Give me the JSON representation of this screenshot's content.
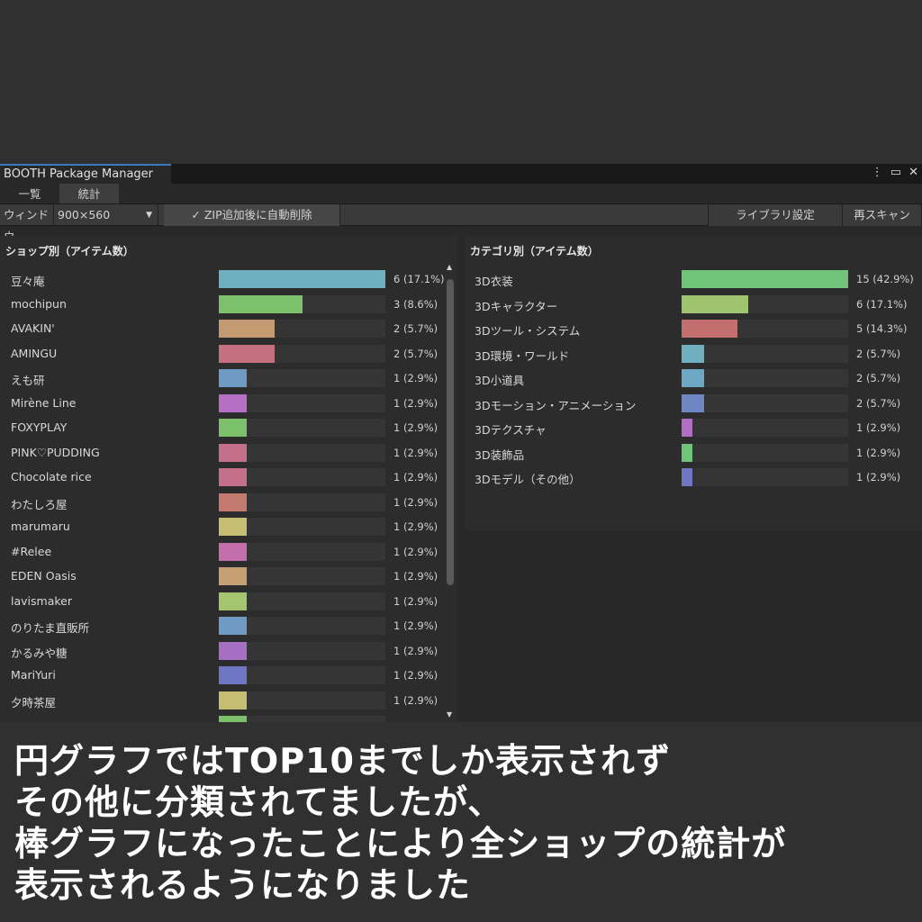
{
  "window": {
    "title": "BOOTH Package Manager",
    "menu_icon": "kebab-icon",
    "max_icon": "maximize-icon",
    "close_icon": "close-icon"
  },
  "tabs": [
    {
      "label": "一覧"
    },
    {
      "label": "統計"
    }
  ],
  "toolbar": {
    "window_label": "ウィンドウ",
    "window_size": "900×560",
    "auto_delete": "✓ ZIP追加後に自動削除",
    "library_settings": "ライブラリ設定",
    "rescan": "再スキャン"
  },
  "shops": {
    "title": "ショップ別（アイテム数）",
    "max": 6,
    "items": [
      {
        "name": "豆々庵",
        "count": 6,
        "label": "6 (17.1%)",
        "color": "#6fb0c0"
      },
      {
        "name": "mochipun",
        "count": 3,
        "label": "3 (8.6%)",
        "color": "#7dc06c"
      },
      {
        "name": "AVAKIN'",
        "count": 2,
        "label": "2 (5.7%)",
        "color": "#c49a72"
      },
      {
        "name": "AMINGU",
        "count": 2,
        "label": "2 (5.7%)",
        "color": "#c4707f"
      },
      {
        "name": "えも研",
        "count": 1,
        "label": "1 (2.9%)",
        "color": "#6f9ac4"
      },
      {
        "name": "Mirène Line",
        "count": 1,
        "label": "1 (2.9%)",
        "color": "#b56fc4"
      },
      {
        "name": "FOXYPLAY",
        "count": 1,
        "label": "1 (2.9%)",
        "color": "#7dc06c"
      },
      {
        "name": "PINK♡PUDDING",
        "count": 1,
        "label": "1 (2.9%)",
        "color": "#c4708a"
      },
      {
        "name": "Chocolate rice",
        "count": 1,
        "label": "1 (2.9%)",
        "color": "#c4708a"
      },
      {
        "name": "わたしろ屋",
        "count": 1,
        "label": "1 (2.9%)",
        "color": "#c47a6f"
      },
      {
        "name": "marumaru",
        "count": 1,
        "label": "1 (2.9%)",
        "color": "#c4bd72"
      },
      {
        "name": "#Relee",
        "count": 1,
        "label": "1 (2.9%)",
        "color": "#c46fab"
      },
      {
        "name": "EDEN Oasis",
        "count": 1,
        "label": "1 (2.9%)",
        "color": "#c4a072"
      },
      {
        "name": "lavismaker",
        "count": 1,
        "label": "1 (2.9%)",
        "color": "#a5c46f"
      },
      {
        "name": "のりたま直販所",
        "count": 1,
        "label": "1 (2.9%)",
        "color": "#6f9ac4"
      },
      {
        "name": "かるみや糖",
        "count": 1,
        "label": "1 (2.9%)",
        "color": "#a76fc4"
      },
      {
        "name": "MariYuri",
        "count": 1,
        "label": "1 (2.9%)",
        "color": "#6f77c4"
      },
      {
        "name": "夕時茶屋",
        "count": 1,
        "label": "1 (2.9%)",
        "color": "#c4bd72"
      },
      {
        "name": "",
        "count": 1,
        "label": "",
        "color": "#7dc06c"
      }
    ]
  },
  "categories": {
    "title": "カテゴリ別（アイテム数）",
    "max": 15,
    "items": [
      {
        "name": "3D衣装",
        "count": 15,
        "label": "15 (42.9%)",
        "color": "#6fc47a"
      },
      {
        "name": "3Dキャラクター",
        "count": 6,
        "label": "6 (17.1%)",
        "color": "#9ec46f"
      },
      {
        "name": "3Dツール・システム",
        "count": 5,
        "label": "5 (14.3%)",
        "color": "#c46f6f"
      },
      {
        "name": "3D環境・ワールド",
        "count": 2,
        "label": "2 (5.7%)",
        "color": "#6fb0c0"
      },
      {
        "name": "3D小道具",
        "count": 2,
        "label": "2 (5.7%)",
        "color": "#6fa8c4"
      },
      {
        "name": "3Dモーション・アニメーション",
        "count": 2,
        "label": "2 (5.7%)",
        "color": "#6f86c4"
      },
      {
        "name": "3Dテクスチャ",
        "count": 1,
        "label": "1 (2.9%)",
        "color": "#b06fc4"
      },
      {
        "name": "3D装飾品",
        "count": 1,
        "label": "1 (2.9%)",
        "color": "#6fc47a"
      },
      {
        "name": "3Dモデル（その他）",
        "count": 1,
        "label": "1 (2.9%)",
        "color": "#6f77c4"
      }
    ]
  },
  "caption": [
    "円グラフではTOP10までしか表示されず",
    "その他に分類されてましたが、",
    "棒グラフになったことにより全ショップの統計が",
    "表示されるようになりました"
  ]
}
